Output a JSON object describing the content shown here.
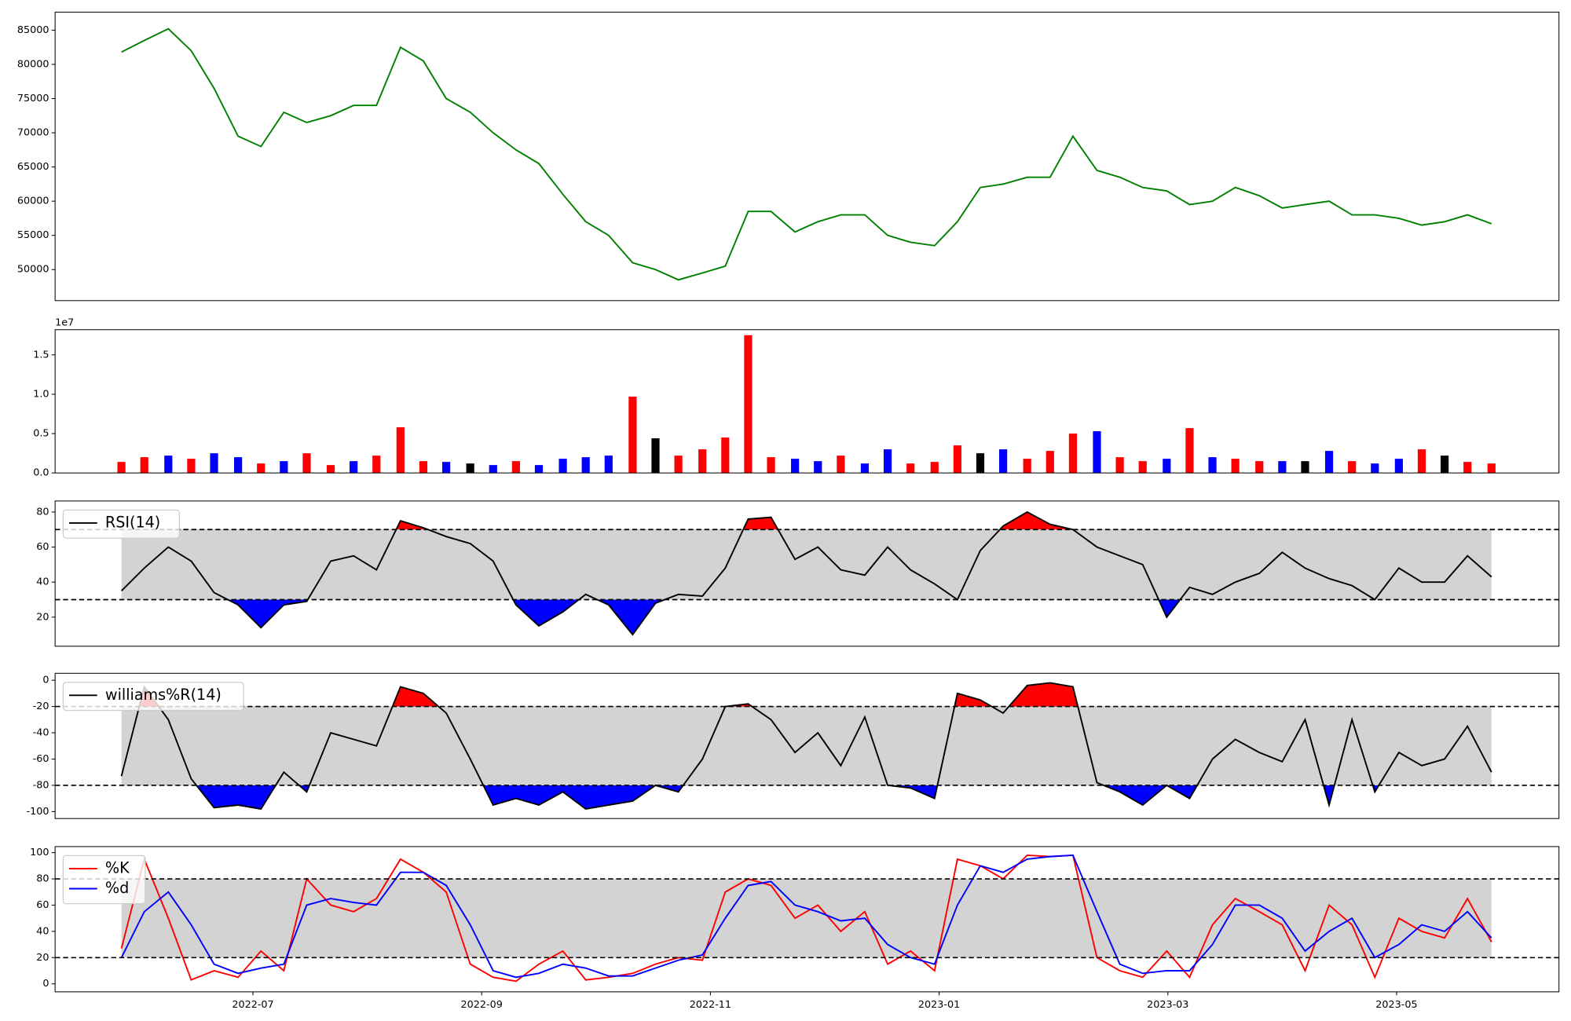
{
  "chart_data": [
    {
      "type": "line",
      "x": [
        5.85,
        6.05,
        6.26,
        6.46,
        6.66,
        6.87,
        7.07,
        7.27,
        7.47,
        7.68,
        7.88,
        8.08,
        8.29,
        8.49,
        8.69,
        8.9,
        9.1,
        9.3,
        9.5,
        9.71,
        9.91,
        10.11,
        10.32,
        10.52,
        10.72,
        10.93,
        11.13,
        11.33,
        11.53,
        11.74,
        11.94,
        12.14,
        12.35,
        12.55,
        12.75,
        12.96,
        13.16,
        13.36,
        13.56,
        13.77,
        13.97,
        14.17,
        14.38,
        14.58,
        14.78,
        14.99,
        15.19,
        15.39,
        15.59,
        15.8,
        16.0,
        16.2,
        16.41,
        16.61,
        16.81,
        17.02,
        17.22,
        17.42,
        17.62,
        17.83
      ],
      "xlim": [
        5.27,
        18.42
      ],
      "ylim": [
        45460,
        87640
      ],
      "yticks": [
        50000,
        55000,
        60000,
        65000,
        70000,
        75000,
        80000,
        85000
      ],
      "series": [
        {
          "color": "green",
          "values": [
            81800,
            83500,
            85200,
            82000,
            76500,
            69500,
            68000,
            73000,
            71500,
            72500,
            74000,
            74000,
            82500,
            80500,
            75000,
            73000,
            70000,
            67500,
            65500,
            61000,
            57000,
            55000,
            51000,
            50000,
            48500,
            49500,
            50500,
            58500,
            58500,
            55500,
            57000,
            58000,
            58000,
            55000,
            54000,
            53500,
            57000,
            62000,
            62500,
            63500,
            63500,
            69500,
            64500,
            63500,
            62000,
            61500,
            59500,
            60000,
            62000,
            60800,
            59000,
            59500,
            60000,
            58000,
            58000,
            57500,
            56500,
            57000,
            58000,
            56700
          ]
        }
      ]
    },
    {
      "type": "bar",
      "offset_label": "1e7",
      "ylim": [
        0,
        1.82
      ],
      "yticks": [
        {
          "value": 0,
          "label": "0.0"
        },
        0.5,
        {
          "value": 1,
          "label": "1.0"
        },
        1.5
      ],
      "values": [
        0.14,
        0.2,
        0.22,
        0.18,
        0.25,
        0.2,
        0.12,
        0.15,
        0.25,
        0.1,
        0.15,
        0.22,
        0.58,
        0.15,
        0.14,
        0.12,
        0.1,
        0.15,
        0.1,
        0.18,
        0.2,
        0.22,
        0.97,
        0.44,
        0.22,
        0.3,
        0.45,
        1.75,
        0.2,
        0.18,
        0.15,
        0.22,
        0.12,
        0.3,
        0.12,
        0.14,
        0.35,
        0.25,
        0.3,
        0.18,
        0.28,
        0.5,
        0.53,
        0.2,
        0.15,
        0.18,
        0.57,
        0.2,
        0.18,
        0.15,
        0.15,
        0.15,
        0.28,
        0.15,
        0.12,
        0.18,
        0.3,
        0.22,
        0.14,
        0.12
      ],
      "colors": [
        "red",
        "red",
        "blue",
        "red",
        "blue",
        "blue",
        "red",
        "blue",
        "red",
        "red",
        "blue",
        "red",
        "red",
        "red",
        "blue",
        "black",
        "blue",
        "red",
        "blue",
        "blue",
        "blue",
        "blue",
        "red",
        "black",
        "red",
        "red",
        "red",
        "red",
        "red",
        "blue",
        "blue",
        "red",
        "blue",
        "blue",
        "red",
        "red",
        "red",
        "black",
        "blue",
        "red",
        "red",
        "red",
        "blue",
        "red",
        "red",
        "blue",
        "red",
        "blue",
        "red",
        "red",
        "blue",
        "black",
        "blue",
        "red",
        "blue",
        "blue",
        "red",
        "black",
        "red",
        "red"
      ]
    },
    {
      "type": "line",
      "ylim": [
        3.4,
        86.3
      ],
      "yticks": [
        20,
        40,
        60,
        80
      ],
      "hlines": [
        70,
        30
      ],
      "band_color": "lightgray",
      "above_color": "red",
      "below_color": "blue",
      "series": [
        {
          "name": "RSI(14)",
          "color": "black",
          "values": [
            35,
            48,
            60,
            52,
            34,
            27,
            14,
            27,
            29,
            52,
            55,
            47,
            75,
            71,
            66,
            62,
            52,
            27,
            15,
            23,
            33,
            27,
            10,
            28,
            33,
            32,
            48,
            76,
            77,
            53,
            60,
            47,
            44,
            60,
            47,
            39,
            30,
            58,
            72,
            80,
            73,
            70,
            60,
            55,
            50,
            20,
            37,
            33,
            40,
            45,
            57,
            48,
            42,
            38,
            30,
            48,
            40,
            40,
            55,
            43
          ]
        }
      ]
    },
    {
      "type": "line",
      "ylim": [
        -105.3,
        5.3
      ],
      "yticks": [
        -100,
        -80,
        -60,
        -40,
        -20,
        0
      ],
      "hlines": [
        -20,
        -80
      ],
      "band_color": "lightgray",
      "above_color": "red",
      "below_color": "blue",
      "series": [
        {
          "name": "williams%R(14)",
          "color": "black",
          "values": [
            -73,
            -5,
            -30,
            -75,
            -97,
            -95,
            -98,
            -70,
            -85,
            -40,
            -45,
            -50,
            -5,
            -10,
            -25,
            -60,
            -95,
            -90,
            -95,
            -85,
            -98,
            -95,
            -92,
            -80,
            -85,
            -60,
            -20,
            -18,
            -30,
            -55,
            -40,
            -65,
            -28,
            -80,
            -82,
            -90,
            -10,
            -15,
            -25,
            -4,
            -2,
            -5,
            -78,
            -85,
            -95,
            -80,
            -90,
            -60,
            -45,
            -55,
            -62,
            -30,
            -95,
            -30,
            -85,
            -55,
            -65,
            -60,
            -35,
            -70
          ]
        }
      ]
    },
    {
      "type": "line",
      "ylim": [
        -6.1,
        104.6
      ],
      "yticks": [
        0,
        20,
        40,
        60,
        80,
        100
      ],
      "hlines": [
        80,
        20
      ],
      "band_color": "lightgray",
      "xticks": [
        {
          "value": 7,
          "label": "2022-07"
        },
        {
          "value": 9,
          "label": "2022-09"
        },
        {
          "value": 11,
          "label": "2022-11"
        },
        {
          "value": 13,
          "label": "2023-01"
        },
        {
          "value": 15,
          "label": "2023-03"
        },
        {
          "value": 17,
          "label": "2023-05"
        }
      ],
      "series": [
        {
          "name": "%K",
          "color": "red",
          "values": [
            27,
            95,
            50,
            3,
            10,
            5,
            25,
            10,
            80,
            60,
            55,
            65,
            95,
            85,
            70,
            15,
            5,
            2,
            15,
            25,
            3,
            5,
            8,
            15,
            20,
            18,
            70,
            80,
            75,
            50,
            60,
            40,
            55,
            15,
            25,
            10,
            95,
            90,
            80,
            98,
            97,
            98,
            20,
            10,
            5,
            25,
            5,
            45,
            65,
            55,
            45,
            10,
            60,
            45,
            5,
            50,
            40,
            35,
            65,
            32
          ]
        },
        {
          "name": "%d",
          "color": "blue",
          "values": [
            20,
            55,
            70,
            45,
            15,
            8,
            12,
            15,
            60,
            65,
            62,
            60,
            85,
            85,
            75,
            45,
            10,
            5,
            8,
            15,
            12,
            6,
            6,
            12,
            18,
            22,
            50,
            75,
            78,
            60,
            55,
            48,
            50,
            30,
            20,
            15,
            60,
            90,
            85,
            95,
            97,
            98,
            55,
            15,
            8,
            10,
            10,
            30,
            60,
            60,
            50,
            25,
            40,
            50,
            20,
            30,
            45,
            40,
            55,
            35
          ]
        }
      ]
    }
  ]
}
